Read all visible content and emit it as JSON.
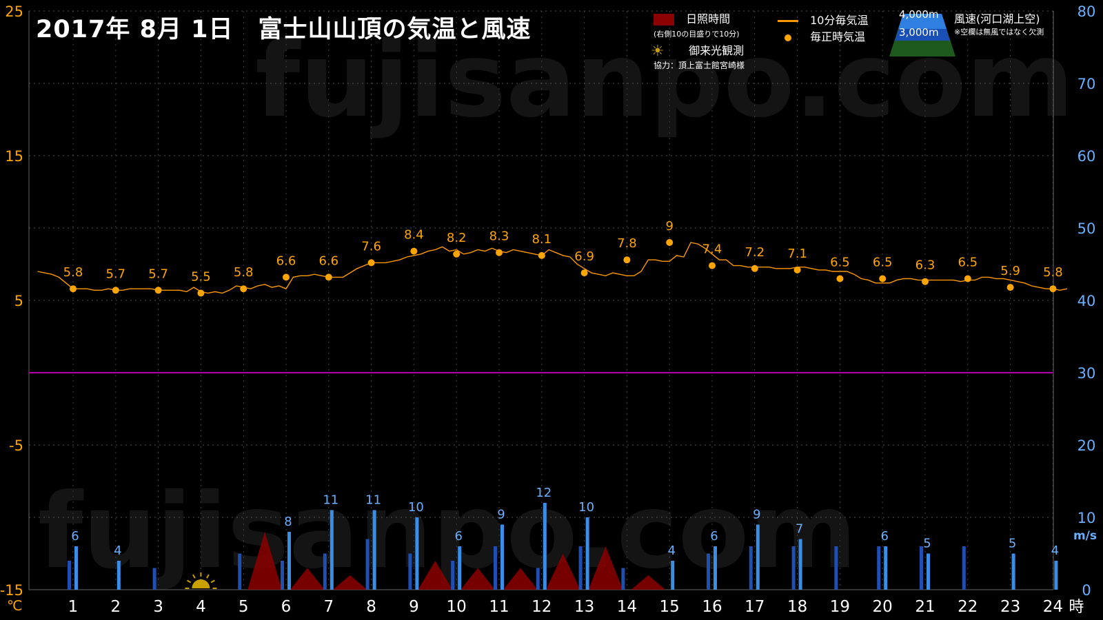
{
  "title": "2017年 8月 1日　富士山山頂の気温と風速",
  "watermark": "fujisanpo.com",
  "legend": {
    "sunshine": "日照時間",
    "sunshine_note": "(右側10の目盛りで10分)",
    "temp10": "10分毎気温",
    "temp_hourly": "毎正時気温",
    "sunrise": "御来光観測",
    "credit": "協力：頂上富士館宮崎様",
    "alt_high": "4,000m",
    "alt_low": "3,000m",
    "wind": "風速(河口湖上空)",
    "wind_note": "※空欄は無風ではなく欠測"
  },
  "colors": {
    "background": "#000000",
    "temp_line": "#ff9900",
    "temp_axis": "#ffa500",
    "wind_axis": "#6ab0ff",
    "wind_4000": "#3a8ee6",
    "wind_3000": "#1f4fb0",
    "sunshine": "#8b0000",
    "freezing_line": "#b000b0"
  },
  "chart_data": {
    "type": "line",
    "x_label_unit": "時",
    "y_left_unit": "℃",
    "y_right_unit": "m/s",
    "y_left_range": [
      -15,
      25
    ],
    "y_right_range": [
      0,
      80
    ],
    "y_left_ticks": [
      25,
      15,
      5,
      -5,
      -15
    ],
    "y_right_ticks": [
      80,
      70,
      60,
      50,
      40,
      30,
      20,
      10,
      0
    ],
    "hours": [
      1,
      2,
      3,
      4,
      5,
      6,
      7,
      8,
      9,
      10,
      11,
      12,
      13,
      14,
      15,
      16,
      17,
      18,
      19,
      20,
      21,
      22,
      23,
      24
    ],
    "hourly_temp": [
      5.8,
      5.7,
      5.7,
      5.5,
      5.8,
      6.6,
      6.6,
      7.6,
      8.4,
      8.2,
      8.3,
      8.1,
      6.9,
      7.8,
      9,
      7.4,
      7.2,
      7.1,
      6.5,
      6.5,
      6.3,
      6.5,
      5.9,
      5.8
    ],
    "temp_10min": [
      7.0,
      6.9,
      6.8,
      6.6,
      6.2,
      5.8,
      5.8,
      5.8,
      5.7,
      5.7,
      5.8,
      5.7,
      5.7,
      5.8,
      5.8,
      5.8,
      5.8,
      5.7,
      5.7,
      5.7,
      5.7,
      5.6,
      5.9,
      5.6,
      5.5,
      5.6,
      5.5,
      5.7,
      6.0,
      5.9,
      5.8,
      6.0,
      6.1,
      5.9,
      6.0,
      5.8,
      6.6,
      6.7,
      6.7,
      6.8,
      6.7,
      6.6,
      6.6,
      6.6,
      6.9,
      7.2,
      7.4,
      7.6,
      7.6,
      7.6,
      7.7,
      7.8,
      8.0,
      8.1,
      8.2,
      8.4,
      8.5,
      8.7,
      8.4,
      8.5,
      8.2,
      8.3,
      8.5,
      8.4,
      8.6,
      8.4,
      8.3,
      8.5,
      8.4,
      8.3,
      8.2,
      8.1,
      8.5,
      8.3,
      8.1,
      8.0,
      7.5,
      7.2,
      6.9,
      6.8,
      6.7,
      6.9,
      6.8,
      6.7,
      6.7,
      7.0,
      7.8,
      7.8,
      7.7,
      7.7,
      8.1,
      8.0,
      9.0,
      8.9,
      8.6,
      8.2,
      7.8,
      7.8,
      7.4,
      7.4,
      7.3,
      7.3,
      7.3,
      7.3,
      7.2,
      7.2,
      7.2,
      7.3,
      7.3,
      7.2,
      7.1,
      7.1,
      7.0,
      7.0,
      7.0,
      6.8,
      6.5,
      6.4,
      6.2,
      6.2,
      6.2,
      6.4,
      6.5,
      6.5,
      6.4,
      6.4,
      6.4,
      6.4,
      6.4,
      6.4,
      6.3,
      6.4,
      6.4,
      6.6,
      6.6,
      6.5,
      6.5,
      6.4,
      6.3,
      6.2,
      6.0,
      5.9,
      5.8,
      5.8,
      5.7,
      5.8
    ],
    "wind_4000": [
      6,
      4,
      null,
      null,
      null,
      8,
      11,
      11,
      10,
      6,
      9,
      12,
      10,
      null,
      4,
      6,
      9,
      7,
      null,
      6,
      5,
      null,
      5,
      4
    ],
    "wind_3000": [
      4,
      null,
      3,
      null,
      5,
      4,
      5,
      7,
      5,
      4,
      6,
      3,
      6,
      3,
      null,
      5,
      6,
      6,
      6,
      6,
      6,
      6,
      null,
      null
    ],
    "wind_labels": [
      "6",
      "4",
      "",
      "",
      "",
      "8",
      "11",
      "11",
      "10",
      "6",
      "9",
      "12",
      "10",
      "",
      "4",
      "6",
      "9",
      "7",
      "",
      "6",
      "5",
      "",
      "5",
      "4"
    ],
    "sunshine_minutes": [
      0,
      0,
      0,
      0,
      0,
      8,
      3,
      2,
      0,
      4,
      3,
      3,
      5,
      6,
      2,
      0,
      0,
      0,
      0,
      0,
      0,
      0,
      0,
      0
    ],
    "sunrise_hour": 4,
    "freezing_line": 0
  }
}
